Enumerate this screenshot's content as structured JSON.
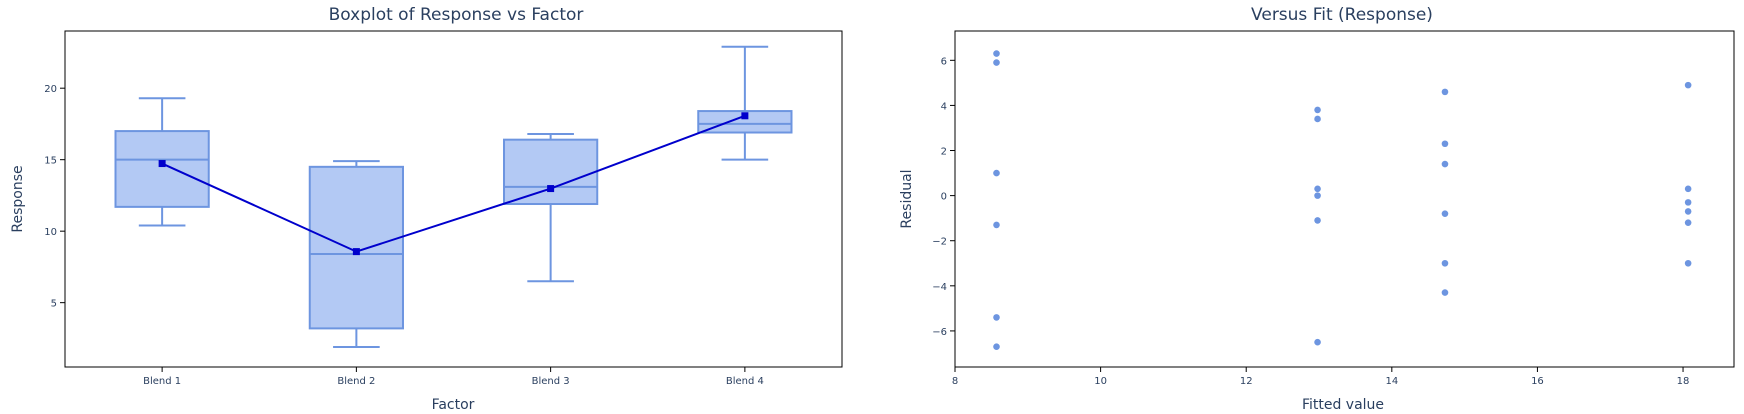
{
  "chart_data": [
    {
      "type": "box",
      "title": "Boxplot of Response vs Factor",
      "xlabel": "Factor",
      "ylabel": "Response",
      "categories": [
        "Blend 1",
        "Blend 2",
        "Blend 3",
        "Blend 4"
      ],
      "ylim": [
        0.5,
        24
      ],
      "yticks": [
        5,
        10,
        15,
        20
      ],
      "boxes": [
        {
          "min": 10.4,
          "q1": 11.7,
          "median": 15.0,
          "q3": 17.0,
          "max": 19.3
        },
        {
          "min": 1.9,
          "q1": 3.2,
          "median": 8.4,
          "q3": 14.5,
          "max": 14.9
        },
        {
          "min": 6.5,
          "q1": 11.9,
          "median": 13.1,
          "q3": 16.4,
          "max": 16.8
        },
        {
          "min": 15.0,
          "q1": 16.9,
          "median": 17.5,
          "q3": 18.4,
          "max": 22.9
        }
      ],
      "mean_line": [
        14.73,
        8.57,
        12.98,
        18.07
      ],
      "colors": {
        "box_fill": "#b3c9f4",
        "box_line": "#6d95e0",
        "mean_line": "#0000cc"
      }
    },
    {
      "type": "scatter",
      "title": "Versus Fit (Response)",
      "xlabel": "Fitted value",
      "ylabel": "Residual",
      "xlim": [
        8,
        18.7
      ],
      "ylim": [
        -7.6,
        7.3
      ],
      "xticks": [
        8,
        10,
        12,
        14,
        16,
        18
      ],
      "yticks": [
        -6,
        -4,
        -2,
        0,
        2,
        4,
        6
      ],
      "points": [
        [
          8.57,
          6.3
        ],
        [
          8.57,
          5.9
        ],
        [
          8.57,
          1.0
        ],
        [
          8.57,
          -1.3
        ],
        [
          8.57,
          -5.4
        ],
        [
          8.57,
          -6.7
        ],
        [
          12.98,
          3.8
        ],
        [
          12.98,
          3.4
        ],
        [
          12.98,
          0.3
        ],
        [
          12.98,
          0.0
        ],
        [
          12.98,
          -1.1
        ],
        [
          12.98,
          -6.5
        ],
        [
          14.73,
          4.6
        ],
        [
          14.73,
          2.3
        ],
        [
          14.73,
          1.4
        ],
        [
          14.73,
          -0.8
        ],
        [
          14.73,
          -3.0
        ],
        [
          14.73,
          -4.3
        ],
        [
          18.07,
          4.9
        ],
        [
          18.07,
          0.3
        ],
        [
          18.07,
          -0.3
        ],
        [
          18.07,
          -0.7
        ],
        [
          18.07,
          -1.2
        ],
        [
          18.07,
          -3.0
        ]
      ],
      "colors": {
        "marker": "#6d95e0"
      }
    }
  ]
}
